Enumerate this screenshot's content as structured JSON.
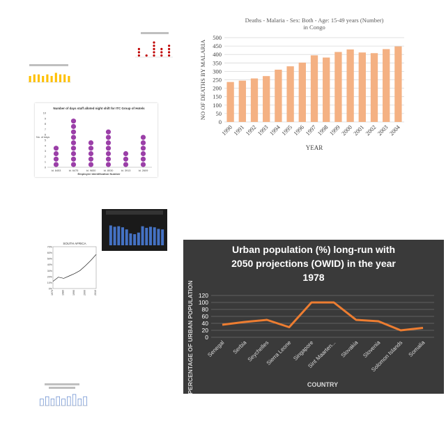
{
  "chart_data": [
    {
      "type": "bar",
      "title": "Deaths - Malaria - Sex: Both - Age: 15-49 years (Number) in Congo",
      "xlabel": "YEAR",
      "ylabel": "NO OF DEATHS BY MALARIA",
      "categories": [
        "1990",
        "1991",
        "1992",
        "1993",
        "1994",
        "1995",
        "1996",
        "1997",
        "1998",
        "1999",
        "2000",
        "2001",
        "2002",
        "2003",
        "2004"
      ],
      "values": [
        237,
        245,
        258,
        272,
        310,
        330,
        352,
        395,
        382,
        415,
        430,
        412,
        408,
        432,
        448
      ],
      "ylim": [
        0,
        500
      ],
      "yticks": [
        "0",
        "50",
        "100",
        "150",
        "200",
        "250",
        "300",
        "350",
        "400",
        "450",
        "500"
      ],
      "grid": true,
      "color": "#f4b183"
    },
    {
      "type": "line",
      "title": "Urban population (%) long-run with 2050 projections (OWID) in the year 1978",
      "xlabel": "COUNTRY",
      "ylabel": "PERCENTAGE OF URBAN POPULATION",
      "categories": [
        "Senegal",
        "Serbia",
        "Seychelles",
        "Sierra Leone",
        "Singapore",
        "Sint Maarten...",
        "Slovakia",
        "Slovenia",
        "Solomon Islands",
        "Somalia"
      ],
      "values": [
        36,
        44,
        50,
        29,
        100,
        100,
        50,
        46,
        20,
        27
      ],
      "ylim": [
        0,
        120
      ],
      "yticks": [
        "0",
        "20",
        "40",
        "60",
        "80",
        "100",
        "120"
      ],
      "grid": true,
      "color": "#ed7d31",
      "background": "#3a3a3a"
    },
    {
      "type": "scatter",
      "title": "Number of days staff alloted night shift for ITC Group of Hotels",
      "xlabel": "Employee Identification Number",
      "ylabel": "No. of days",
      "categories": [
        "Id. 8453",
        "Id. 6475",
        "Id. 9830",
        "Id. 8030",
        "Id. 3913",
        "Id. 2609"
      ],
      "values": [
        4,
        9,
        5,
        7,
        3,
        6
      ],
      "ylim": [
        0,
        10
      ],
      "yticks": [
        "0",
        "1",
        "2",
        "3",
        "4",
        "5",
        "6",
        "7",
        "8",
        "9",
        "10"
      ],
      "color": "#9b3fa8"
    },
    {
      "type": "line",
      "title": "SOUTH AFRICA",
      "xlabel": "",
      "ylabel": "",
      "x": [
        1970,
        1975,
        1980,
        1985,
        1990,
        1995,
        2000,
        2005,
        2010
      ],
      "values": [
        12,
        19,
        17,
        21,
        25,
        30,
        38,
        47,
        57
      ],
      "ylim": [
        0,
        70
      ],
      "yticks": [
        "0%",
        "10%",
        "20%",
        "30%",
        "40%",
        "50%",
        "60%",
        "70%"
      ],
      "xticks": [
        "1970",
        "1980",
        "1990",
        "2000",
        "2010"
      ]
    },
    {
      "type": "bar",
      "title": "",
      "values": [
        75,
        70,
        72,
        68,
        60,
        45,
        42,
        48,
        72,
        66,
        70,
        68,
        62,
        60
      ],
      "ylim": [
        0,
        100
      ],
      "color": "#4472c4",
      "background": "#1a1a1a"
    },
    {
      "type": "bar",
      "title": "",
      "values": [
        4,
        5,
        5,
        4,
        5,
        4,
        6,
        5,
        5,
        4
      ],
      "ylim": [
        0,
        8
      ],
      "color": "#ffc000"
    },
    {
      "type": "scatter",
      "title": "",
      "values": [
        3,
        1,
        5,
        3,
        4
      ],
      "ylim": [
        0,
        6
      ],
      "color": "#c00000"
    },
    {
      "type": "bar",
      "title": "",
      "values": [
        3,
        4,
        3,
        4,
        3,
        4,
        5,
        3,
        4
      ],
      "ylim": [
        0,
        8
      ],
      "color": "#4472c4"
    }
  ]
}
